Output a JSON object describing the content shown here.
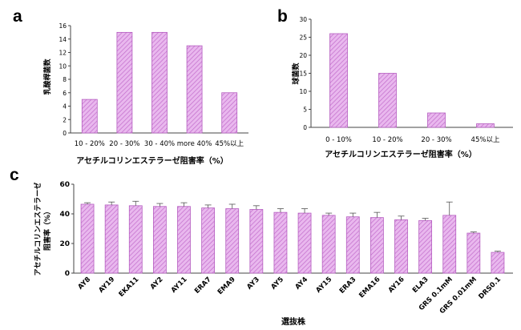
{
  "chart_data": [
    {
      "panel": "a",
      "type": "bar",
      "categories": [
        "10 - 20%",
        "20 - 30%",
        "30 - 40%",
        "more 40%",
        "45%以上"
      ],
      "values": [
        5,
        15,
        15,
        13,
        6
      ],
      "xlabel": "アセチルコリンエステラーゼ阻害率（%）",
      "ylabel": "乳酸桿菌数",
      "ylim": [
        0,
        16
      ],
      "yticks": [
        0,
        2,
        4,
        6,
        8,
        10,
        12,
        14,
        16
      ],
      "bar_color": "#d18ad8",
      "grid": false
    },
    {
      "panel": "b",
      "type": "bar",
      "categories": [
        "0 - 10%",
        "10 - 20%",
        "20 - 30%",
        "45%以上"
      ],
      "values": [
        26,
        15,
        4,
        1
      ],
      "xlabel": "アセチルコリンエステラーゼ阻害率（%）",
      "ylabel": "球菌数",
      "ylim": [
        0,
        30
      ],
      "yticks": [
        0,
        5,
        10,
        15,
        20,
        25,
        30
      ],
      "bar_color": "#d18ad8",
      "grid": false
    },
    {
      "panel": "c",
      "type": "bar",
      "categories": [
        "AY8",
        "AY19",
        "EKA11",
        "AY2",
        "AY11",
        "ERA7",
        "EMA9",
        "AY3",
        "AY5",
        "AY4",
        "AY15",
        "ERA3",
        "EMA16",
        "AY16",
        "ELA3",
        "GRS 0.1mM",
        "GRS 0.01mM",
        "DRS0.1"
      ],
      "values": [
        46.5,
        46,
        45.5,
        45,
        45,
        44,
        43.5,
        43,
        41,
        40.5,
        39,
        38,
        37.5,
        36,
        35.5,
        39,
        27,
        14
      ],
      "error": [
        1,
        2,
        3,
        2,
        2.5,
        2,
        3,
        2.5,
        2.5,
        3,
        1.5,
        2.5,
        3.5,
        2.5,
        1.5,
        9,
        0.8,
        0.8
      ],
      "xlabel": "選抜株",
      "ylabel_lines": [
        "アセチルコリンエステラーゼ",
        "阻害率（%）"
      ],
      "ylim": [
        0,
        60
      ],
      "yticks": [
        0,
        20,
        40,
        60
      ],
      "bar_color": "#d18ad8",
      "grid": false
    }
  ],
  "panel_labels": [
    "a",
    "b",
    "c"
  ]
}
